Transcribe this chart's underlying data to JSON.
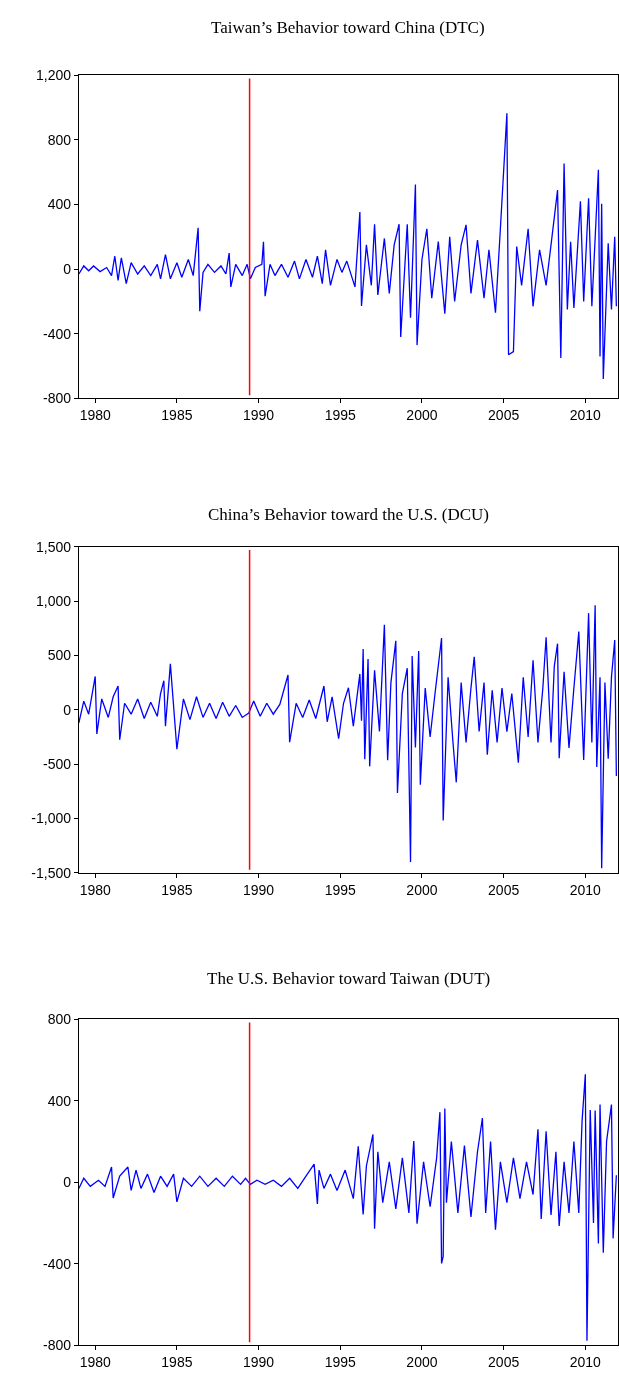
{
  "chart_data": [
    {
      "type": "line",
      "title": "Taiwan’s Behavior toward China (DTC)",
      "line_style": "solid",
      "x": [
        1979.0,
        1979.3,
        1979.6,
        1979.9,
        1980.3,
        1980.7,
        1981.0,
        1981.2,
        1981.4,
        1981.6,
        1981.9,
        1982.2,
        1982.6,
        1983.0,
        1983.4,
        1983.8,
        1984.0,
        1984.3,
        1984.6,
        1985.0,
        1985.3,
        1985.7,
        1986.0,
        1986.3,
        1986.4,
        1986.6,
        1986.9,
        1987.3,
        1987.7,
        1988.0,
        1988.2,
        1988.3,
        1988.6,
        1989.0,
        1989.3,
        1989.5,
        1989.8,
        1990.2,
        1990.3,
        1990.4,
        1990.7,
        1991.0,
        1991.4,
        1991.8,
        1992.2,
        1992.5,
        1992.9,
        1993.3,
        1993.6,
        1993.9,
        1994.1,
        1994.4,
        1994.8,
        1995.1,
        1995.4,
        1995.9,
        1996.2,
        1996.3,
        1996.6,
        1996.9,
        1997.1,
        1997.3,
        1997.7,
        1998.0,
        1998.3,
        1998.6,
        1998.7,
        1999.1,
        1999.3,
        1999.6,
        1999.7,
        2000.0,
        2000.3,
        2000.6,
        2001.0,
        2001.4,
        2001.7,
        2002.0,
        2002.4,
        2002.7,
        2003.0,
        2003.4,
        2003.8,
        2004.1,
        2004.5,
        2004.8,
        2005.2,
        2005.3,
        2005.6,
        2005.8,
        2006.1,
        2006.5,
        2006.8,
        2007.2,
        2007.6,
        2007.9,
        2008.3,
        2008.5,
        2008.7,
        2008.9,
        2009.1,
        2009.3,
        2009.7,
        2009.9,
        2010.2,
        2010.4,
        2010.6,
        2010.8,
        2010.9,
        2011.0,
        2011.1,
        2011.4,
        2011.6,
        2011.8,
        2011.9
      ],
      "series": [
        {
          "color": "#0000ff",
          "values": [
            -30,
            20,
            -10,
            20,
            -15,
            10,
            -40,
            80,
            -70,
            70,
            -90,
            40,
            -30,
            20,
            -40,
            30,
            -60,
            90,
            -60,
            40,
            -50,
            60,
            -40,
            256,
            -260,
            -20,
            30,
            -20,
            20,
            -30,
            100,
            -110,
            30,
            -40,
            30,
            -60,
            10,
            30,
            170,
            -167,
            30,
            -40,
            30,
            -50,
            50,
            -60,
            60,
            -50,
            80,
            -90,
            120,
            -100,
            60,
            -20,
            50,
            -110,
            354,
            -228,
            150,
            -100,
            278,
            -160,
            190,
            -150,
            150,
            278,
            -420,
            278,
            -300,
            524,
            -470,
            60,
            250,
            -180,
            170,
            -276,
            200,
            -200,
            150,
            274,
            -150,
            180,
            -180,
            120,
            -270,
            250,
            965,
            -530,
            -510,
            140,
            -100,
            250,
            -230,
            120,
            -100,
            150,
            489,
            -550,
            654,
            -250,
            170,
            -240,
            420,
            -200,
            439,
            -230,
            190,
            615,
            -540,
            404,
            -680,
            160,
            -250,
            200,
            -230
          ]
        }
      ],
      "xlim": [
        1979,
        2012
      ],
      "xticks": [
        1980,
        1985,
        1990,
        1995,
        2000,
        2005,
        2010
      ],
      "ylim": [
        -800,
        1200
      ],
      "yticks": [
        -800,
        -400,
        0,
        400,
        800,
        {
          "value": 1200,
          "label": "1,200"
        }
      ],
      "ref_lines": [
        {
          "axis": "x",
          "value": 1989.45,
          "color": "#ff0000"
        }
      ]
    },
    {
      "type": "line",
      "title": "China’s Behavior toward the U.S. (DCU)",
      "line_style": "solid",
      "x": [
        1979.0,
        1979.3,
        1979.6,
        1980.0,
        1980.1,
        1980.4,
        1980.8,
        1981.1,
        1981.4,
        1981.5,
        1981.8,
        1982.2,
        1982.6,
        1983.0,
        1983.4,
        1983.8,
        1984.0,
        1984.2,
        1984.3,
        1984.6,
        1985.0,
        1985.4,
        1985.8,
        1986.2,
        1986.6,
        1987.0,
        1987.4,
        1987.8,
        1988.2,
        1988.6,
        1989.0,
        1989.4,
        1989.7,
        1990.1,
        1990.5,
        1990.9,
        1991.3,
        1991.8,
        1991.9,
        1992.3,
        1992.7,
        1993.1,
        1993.5,
        1994.0,
        1994.2,
        1994.5,
        1994.9,
        1995.2,
        1995.5,
        1995.8,
        1996.2,
        1996.3,
        1996.4,
        1996.5,
        1996.7,
        1996.8,
        1997.1,
        1997.4,
        1997.7,
        1997.9,
        1998.1,
        1998.4,
        1998.5,
        1998.8,
        1999.1,
        1999.3,
        1999.4,
        1999.6,
        1999.8,
        1999.9,
        2000.2,
        2000.5,
        2000.8,
        2001.2,
        2001.3,
        2001.6,
        2001.9,
        2002.1,
        2002.4,
        2002.7,
        2003.0,
        2003.2,
        2003.5,
        2003.8,
        2004.0,
        2004.3,
        2004.6,
        2004.9,
        2005.2,
        2005.5,
        2005.9,
        2006.2,
        2006.5,
        2006.8,
        2007.1,
        2007.4,
        2007.6,
        2007.9,
        2008.1,
        2008.3,
        2008.4,
        2008.7,
        2009.0,
        2009.3,
        2009.6,
        2009.9,
        2010.2,
        2010.4,
        2010.6,
        2010.7,
        2010.9,
        2011.0,
        2011.2,
        2011.4,
        2011.6,
        2011.8,
        2011.9
      ],
      "series": [
        {
          "color": "#0000ff",
          "values": [
            -120,
            80,
            -40,
            307,
            -222,
            100,
            -70,
            120,
            219,
            -275,
            60,
            -40,
            100,
            -80,
            70,
            -60,
            150,
            268,
            -150,
            422,
            -363,
            100,
            -90,
            120,
            -70,
            60,
            -80,
            70,
            -60,
            40,
            -70,
            -30,
            80,
            -60,
            60,
            -40,
            50,
            320,
            -298,
            60,
            -70,
            90,
            -80,
            219,
            -110,
            120,
            -265,
            60,
            203,
            -150,
            330,
            -100,
            559,
            -455,
            467,
            -520,
            363,
            -200,
            782,
            -464,
            250,
            634,
            -765,
            150,
            383,
            -1400,
            494,
            -347,
            540,
            -690,
            200,
            -250,
            150,
            660,
            -1017,
            300,
            -300,
            -667,
            250,
            -300,
            200,
            487,
            -200,
            250,
            -412,
            180,
            -300,
            200,
            -200,
            150,
            -487,
            300,
            -250,
            455,
            -300,
            200,
            667,
            -300,
            400,
            608,
            -445,
            350,
            -350,
            200,
            719,
            -461,
            889,
            -300,
            961,
            -526,
            300,
            -1458,
            250,
            -450,
            300,
            641,
            -608
          ]
        }
      ],
      "xlim": [
        1979,
        2012
      ],
      "xticks": [
        1980,
        1985,
        1990,
        1995,
        2000,
        2005,
        2010
      ],
      "ylim": [
        -1500,
        1500
      ],
      "yticks": [
        {
          "value": -1500,
          "label": "-1,500"
        },
        {
          "value": -1000,
          "label": "-1,000"
        },
        -500,
        0,
        500,
        {
          "value": 1000,
          "label": "1,000"
        },
        {
          "value": 1500,
          "label": "1,500"
        }
      ],
      "ref_lines": [
        {
          "axis": "x",
          "value": 1989.45,
          "color": "#ff0000"
        }
      ]
    },
    {
      "type": "line",
      "title": "The U.S. Behavior toward Taiwan (DUT)",
      "line_style": "solid",
      "x": [
        1979.0,
        1979.3,
        1979.7,
        1980.2,
        1980.6,
        1981.0,
        1981.1,
        1981.5,
        1982.0,
        1982.2,
        1982.5,
        1982.8,
        1983.2,
        1983.6,
        1984.0,
        1984.4,
        1984.8,
        1985.0,
        1985.4,
        1985.9,
        1986.4,
        1986.9,
        1987.4,
        1987.9,
        1988.4,
        1988.9,
        1989.2,
        1989.5,
        1989.9,
        1990.4,
        1990.9,
        1991.4,
        1991.9,
        1992.4,
        1992.9,
        1993.4,
        1993.6,
        1993.7,
        1994.0,
        1994.4,
        1994.8,
        1995.3,
        1995.8,
        1996.1,
        1996.4,
        1996.6,
        1997.0,
        1997.1,
        1997.3,
        1997.6,
        1998.0,
        1998.4,
        1998.8,
        1999.2,
        1999.5,
        1999.7,
        2000.1,
        2000.5,
        2000.9,
        2001.1,
        2001.2,
        2001.3,
        2001.4,
        2001.5,
        2001.8,
        2002.2,
        2002.6,
        2003.0,
        2003.4,
        2003.7,
        2003.9,
        2004.2,
        2004.5,
        2004.8,
        2005.2,
        2005.6,
        2006.0,
        2006.4,
        2006.8,
        2007.1,
        2007.3,
        2007.6,
        2007.9,
        2008.2,
        2008.4,
        2008.7,
        2009.0,
        2009.3,
        2009.6,
        2009.8,
        2010.0,
        2010.1,
        2010.3,
        2010.5,
        2010.6,
        2010.8,
        2010.9,
        2011.1,
        2011.3,
        2011.6,
        2011.7,
        2011.9
      ],
      "series": [
        {
          "color": "#0000ff",
          "values": [
            -30,
            20,
            -20,
            10,
            -20,
            75,
            -77,
            30,
            75,
            -40,
            60,
            -30,
            40,
            -50,
            30,
            -20,
            40,
            -96,
            20,
            -20,
            30,
            -20,
            20,
            -20,
            30,
            -10,
            20,
            -10,
            10,
            -10,
            10,
            -20,
            20,
            -30,
            30,
            89,
            -106,
            60,
            -30,
            40,
            -40,
            60,
            -80,
            176,
            -158,
            80,
            235,
            -228,
            150,
            -100,
            100,
            -130,
            120,
            -150,
            202,
            -203,
            100,
            -120,
            120,
            344,
            -398,
            -363,
            362,
            -100,
            200,
            -150,
            180,
            -170,
            150,
            315,
            -150,
            200,
            -233,
            100,
            -100,
            120,
            -80,
            100,
            -60,
            260,
            -180,
            250,
            -160,
            150,
            -214,
            100,
            -150,
            200,
            -150,
            300,
            530,
            -777,
            355,
            -200,
            352,
            -300,
            381,
            -346,
            200,
            381,
            -275,
            35
          ]
        }
      ],
      "xlim": [
        1979,
        2012
      ],
      "xticks": [
        1980,
        1985,
        1990,
        1995,
        2000,
        2005,
        2010
      ],
      "ylim": [
        -800,
        800
      ],
      "yticks": [
        -800,
        -400,
        0,
        400,
        800
      ],
      "ref_lines": [
        {
          "axis": "x",
          "value": 1989.45,
          "color": "#ff0000"
        }
      ]
    }
  ]
}
